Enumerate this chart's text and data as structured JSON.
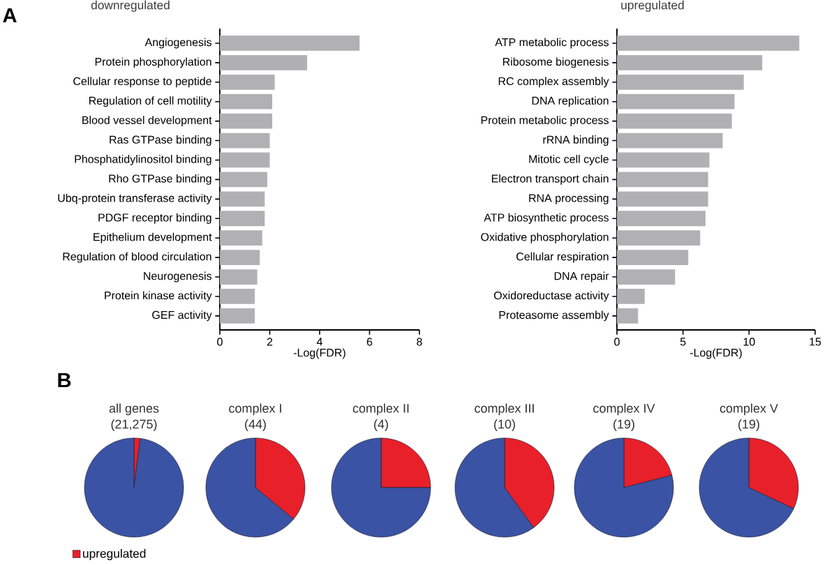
{
  "chart_data": [
    {
      "type": "bar",
      "orientation": "horizontal",
      "title": "downregulated",
      "xlabel": "-Log(FDR)",
      "annotations": [
        "A"
      ],
      "categories": [
        "Angiogenesis",
        "Protein phosphorylation",
        "Cellular response to peptide",
        "Regulation of cell motility",
        "Blood vessel development",
        "Ras GTPase binding",
        "Phosphatidylinositol binding",
        "Rho GTPase binding",
        "Ubq-protein transferase activity",
        "PDGF receptor binding",
        "Epithelium development",
        "Regulation of blood circulation",
        "Neurogenesis",
        "Protein kinase activity",
        "GEF activity"
      ],
      "values": [
        5.6,
        3.5,
        2.2,
        2.1,
        2.1,
        2.0,
        2.0,
        1.9,
        1.8,
        1.8,
        1.7,
        1.6,
        1.5,
        1.4,
        1.4
      ],
      "color": "#b1b1b4",
      "xlim": [
        0,
        8
      ],
      "xticks": [
        0,
        2,
        4,
        6,
        8
      ]
    },
    {
      "type": "bar",
      "orientation": "horizontal",
      "title": "upregulated",
      "xlabel": "-Log(FDR)",
      "categories": [
        "ATP metabolic process",
        "Ribosome biogenesis",
        "RC complex assembly",
        "DNA replication",
        "Protein metabolic process",
        "rRNA binding",
        "Mitotic cell cycle",
        "Electron transport chain",
        "RNA processing",
        "ATP biosynthetic process",
        "Oxidative phosphorylation",
        "Cellular respiration",
        "DNA repair",
        "Oxidoreductase activity",
        "Proteasome assembly"
      ],
      "values": [
        13.8,
        11.0,
        9.6,
        8.9,
        8.7,
        8.0,
        7.0,
        6.9,
        6.9,
        6.7,
        6.3,
        5.4,
        4.4,
        2.1,
        1.6
      ],
      "color": "#b1b1b4",
      "xlim": [
        0,
        15
      ],
      "xticks": [
        0,
        5,
        10,
        15
      ]
    },
    {
      "type": "pie",
      "title": "all genes",
      "subtitle": "(21,275)",
      "annotations": [
        "B"
      ],
      "legend": "bottom left",
      "categories": [
        "upregulated",
        null
      ],
      "values": [
        2,
        98
      ],
      "colors": [
        "#e8202a",
        "#3a53a4"
      ]
    },
    {
      "type": "pie",
      "title": "complex I",
      "subtitle": "(44)",
      "categories": [
        null,
        null
      ],
      "values": [
        36,
        64
      ],
      "colors": [
        "#e8202a",
        "#3a53a4"
      ]
    },
    {
      "type": "pie",
      "title": "complex II",
      "subtitle": "(4)",
      "categories": [
        null,
        null
      ],
      "values": [
        25,
        75
      ],
      "colors": [
        "#e8202a",
        "#3a53a4"
      ]
    },
    {
      "type": "pie",
      "title": "complex III",
      "subtitle": "(10)",
      "categories": [
        null,
        null
      ],
      "values": [
        40,
        60
      ],
      "colors": [
        "#e8202a",
        "#3a53a4"
      ]
    },
    {
      "type": "pie",
      "title": "complex IV",
      "subtitle": "(19)",
      "categories": [
        null,
        null
      ],
      "values": [
        21,
        79
      ],
      "colors": [
        "#e8202a",
        "#3a53a4"
      ]
    },
    {
      "type": "pie",
      "title": "complex V",
      "subtitle": "(19)",
      "categories": [
        null,
        null
      ],
      "values": [
        32,
        68
      ],
      "colors": [
        "#e8202a",
        "#3a53a4"
      ]
    }
  ]
}
